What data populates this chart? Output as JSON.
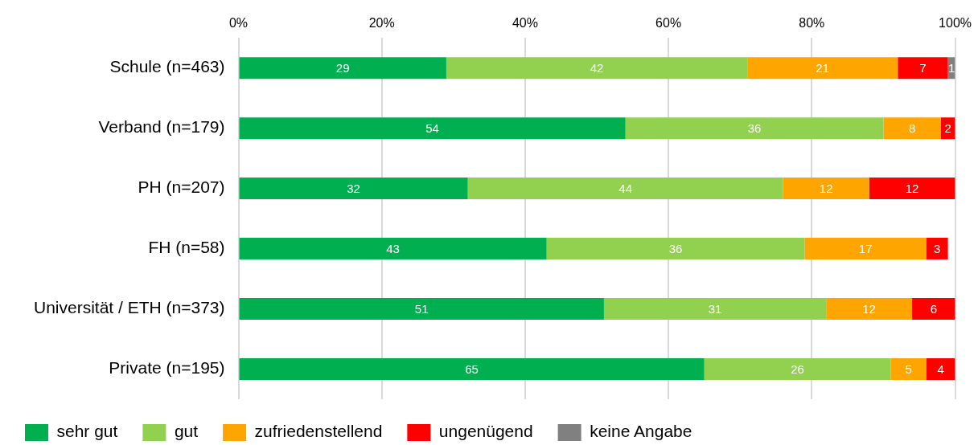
{
  "chart_data": {
    "type": "bar",
    "orientation": "horizontal",
    "stacked": true,
    "categories": [
      "Schule (n=463)",
      "Verband (n=179)",
      "PH (n=207)",
      "FH (n=58)",
      "Universität / ETH (n=373)",
      "Private (n=195)"
    ],
    "series": [
      {
        "name": "sehr gut",
        "color": "#00b050",
        "values": [
          29,
          54,
          32,
          43,
          51,
          65
        ]
      },
      {
        "name": "gut",
        "color": "#92d050",
        "values": [
          42,
          36,
          44,
          36,
          31,
          26
        ]
      },
      {
        "name": "zufriedenstellend",
        "color": "#ffa500",
        "values": [
          21,
          8,
          12,
          17,
          12,
          5
        ]
      },
      {
        "name": "ungenügend",
        "color": "#ff0000",
        "values": [
          7,
          2,
          12,
          3,
          6,
          4
        ]
      },
      {
        "name": "keine Angabe",
        "color": "#808080",
        "values": [
          1,
          null,
          null,
          null,
          null,
          null
        ]
      }
    ],
    "xlim": [
      0,
      100
    ],
    "xticks": [
      {
        "value": 0,
        "label": "0%"
      },
      {
        "value": 20,
        "label": "20%"
      },
      {
        "value": 40,
        "label": "40%"
      },
      {
        "value": 60,
        "label": "60%"
      },
      {
        "value": 80,
        "label": "80%"
      },
      {
        "value": 100,
        "label": "100%"
      }
    ],
    "grid": "x",
    "legend": "bottom left",
    "data_labels": true
  }
}
